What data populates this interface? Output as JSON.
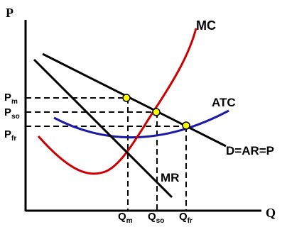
{
  "axes": {
    "y_label": "P",
    "x_label": "Q"
  },
  "curves": {
    "mc": {
      "label": "MC",
      "color": "#cc0000"
    },
    "atc": {
      "label": "ATC",
      "color": "#1a1aa6"
    },
    "demand": {
      "label": "D=AR=P",
      "color": "#000000"
    },
    "mr": {
      "label": "MR",
      "color": "#000000"
    }
  },
  "price_levels": {
    "pm": {
      "main": "P",
      "sub": "m"
    },
    "pso": {
      "main": "P",
      "sub": "so"
    },
    "pfr": {
      "main": "P",
      "sub": "fr"
    }
  },
  "quantity_levels": {
    "qm": {
      "main": "Q",
      "sub": "m"
    },
    "qso": {
      "main": "Q",
      "sub": "so"
    },
    "qfr": {
      "main": "Q",
      "sub": "fr"
    }
  },
  "colors": {
    "point": "#ffff00",
    "axis": "#000000",
    "guide": "#000000"
  }
}
